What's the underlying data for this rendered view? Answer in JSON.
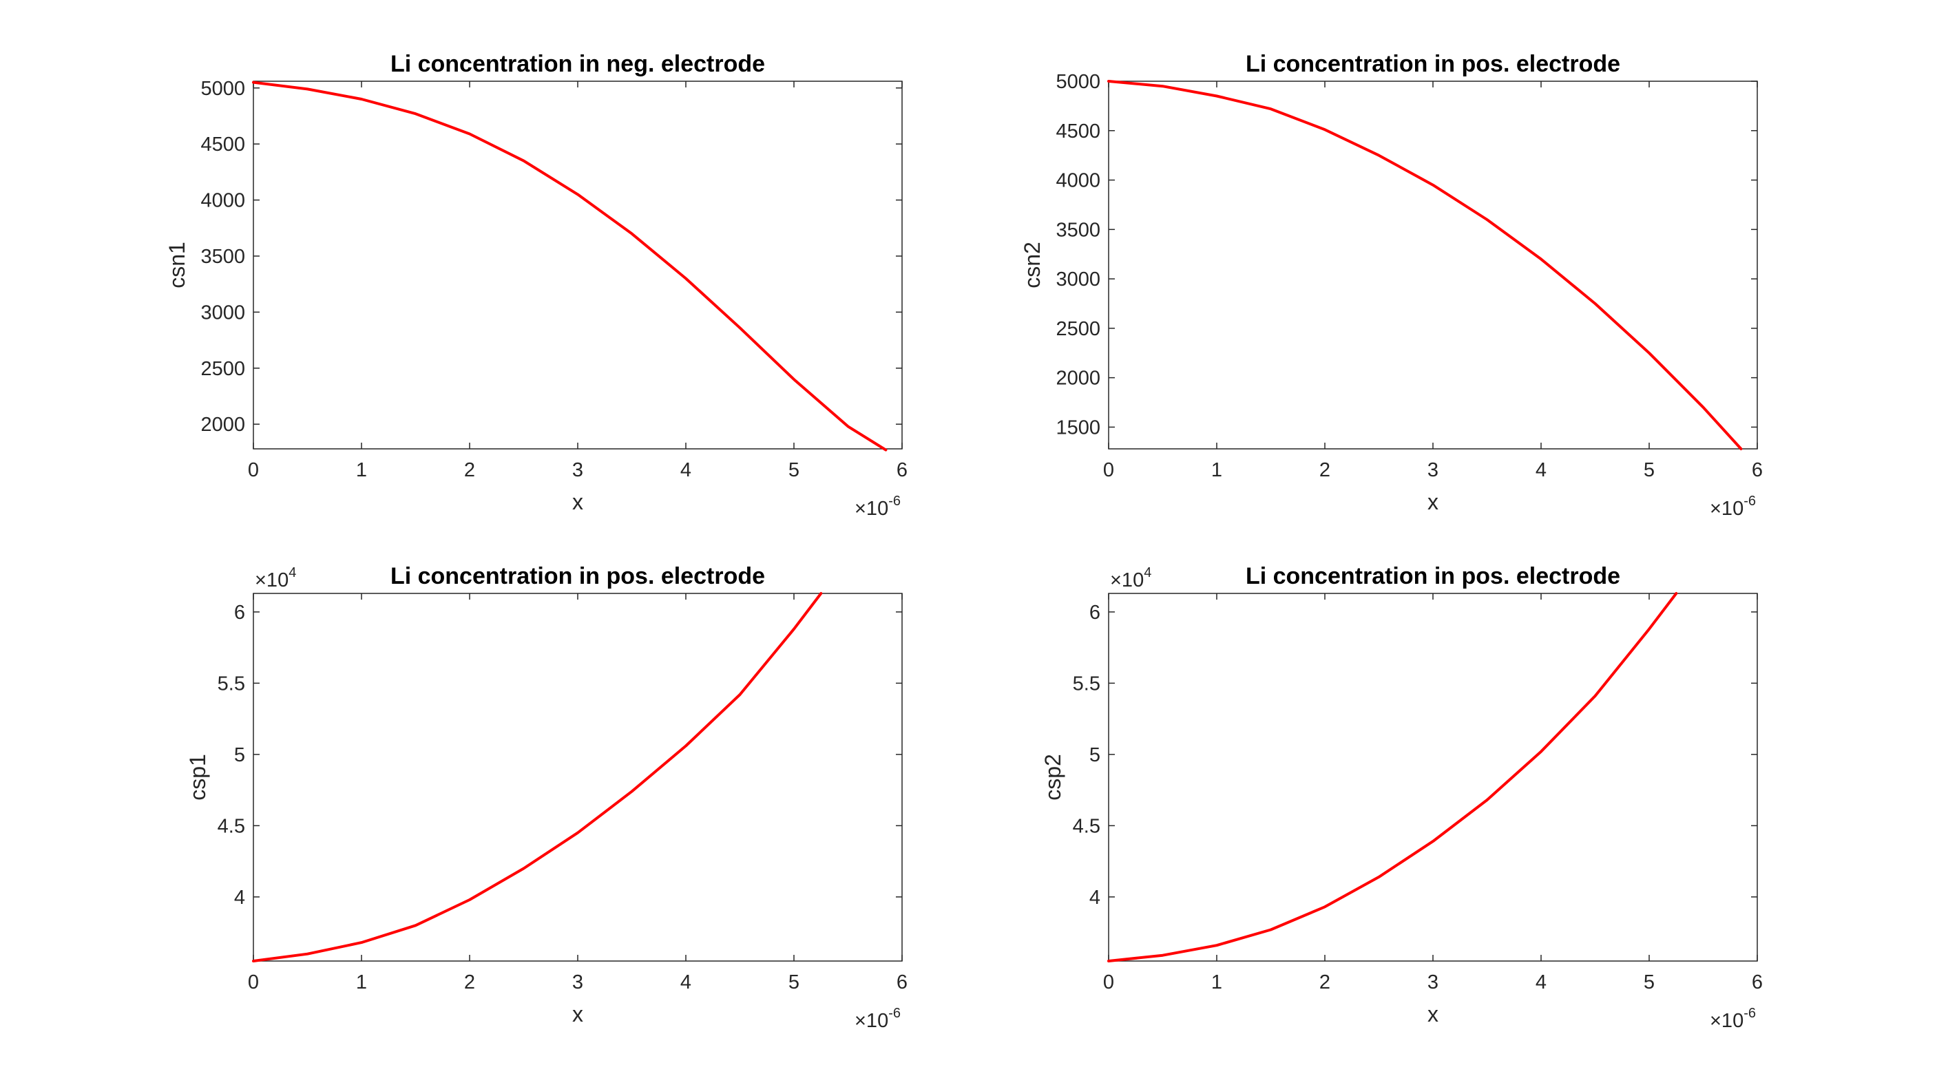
{
  "chart_data": [
    {
      "type": "line",
      "title": "Li concentration in neg. electrode",
      "xlabel": "x",
      "ylabel": "csn1",
      "x_exponent_label": "×10",
      "x_exponent_power": "-6",
      "y_exponent_label": "",
      "y_exponent_power": "",
      "xlim": [
        0,
        6
      ],
      "ylim": [
        1780,
        5060
      ],
      "xticks": [
        0,
        1,
        2,
        3,
        4,
        5,
        6
      ],
      "xtick_labels": [
        "0",
        "1",
        "2",
        "3",
        "4",
        "5",
        "6"
      ],
      "yticks": [
        2000,
        2500,
        3000,
        3500,
        4000,
        4500,
        5000
      ],
      "ytick_labels": [
        "2000",
        "2500",
        "3000",
        "3500",
        "4000",
        "4500",
        "5000"
      ],
      "color": "#ff0000",
      "x": [
        0,
        0.5,
        1,
        1.5,
        2,
        2.5,
        3,
        3.5,
        4,
        4.5,
        5,
        5.5,
        5.85
      ],
      "y": [
        5050,
        4990,
        4900,
        4770,
        4590,
        4350,
        4050,
        3700,
        3300,
        2860,
        2400,
        1980,
        1770
      ]
    },
    {
      "type": "line",
      "title": "Li concentration in pos. electrode",
      "xlabel": "x",
      "ylabel": "csn2",
      "x_exponent_label": "×10",
      "x_exponent_power": "-6",
      "y_exponent_label": "",
      "y_exponent_power": "",
      "xlim": [
        0,
        6
      ],
      "ylim": [
        1280,
        5000
      ],
      "xticks": [
        0,
        1,
        2,
        3,
        4,
        5,
        6
      ],
      "xtick_labels": [
        "0",
        "1",
        "2",
        "3",
        "4",
        "5",
        "6"
      ],
      "yticks": [
        1500,
        2000,
        2500,
        3000,
        3500,
        4000,
        4500,
        5000
      ],
      "ytick_labels": [
        "1500",
        "2000",
        "2500",
        "3000",
        "3500",
        "4000",
        "4500",
        "5000"
      ],
      "color": "#ff0000",
      "x": [
        0,
        0.5,
        1,
        1.5,
        2,
        2.5,
        3,
        3.5,
        4,
        4.5,
        5,
        5.5,
        5.85
      ],
      "y": [
        5000,
        4950,
        4850,
        4720,
        4510,
        4250,
        3950,
        3600,
        3200,
        2750,
        2250,
        1700,
        1280
      ]
    },
    {
      "type": "line",
      "title": "Li concentration in pos. electrode",
      "xlabel": "x",
      "ylabel": "csp1",
      "x_exponent_label": "×10",
      "x_exponent_power": "-6",
      "y_exponent_label": "×10",
      "y_exponent_power": "4",
      "xlim": [
        0,
        6
      ],
      "ylim": [
        3.55,
        6.13
      ],
      "xticks": [
        0,
        1,
        2,
        3,
        4,
        5,
        6
      ],
      "xtick_labels": [
        "0",
        "1",
        "2",
        "3",
        "4",
        "5",
        "6"
      ],
      "yticks": [
        4,
        4.5,
        5,
        5.5,
        6
      ],
      "ytick_labels": [
        "4",
        "4.5",
        "5",
        "5.5",
        "6"
      ],
      "color": "#ff0000",
      "x": [
        0,
        0.5,
        1,
        1.5,
        2,
        2.5,
        3,
        3.5,
        4,
        4.5,
        5,
        5.25
      ],
      "y": [
        3.55,
        3.6,
        3.68,
        3.8,
        3.98,
        4.2,
        4.45,
        4.74,
        5.06,
        5.42,
        5.88,
        6.13
      ]
    },
    {
      "type": "line",
      "title": "Li concentration in pos. electrode",
      "xlabel": "x",
      "ylabel": "csp2",
      "x_exponent_label": "×10",
      "x_exponent_power": "-6",
      "y_exponent_label": "×10",
      "y_exponent_power": "4",
      "xlim": [
        0,
        6
      ],
      "ylim": [
        3.55,
        6.13
      ],
      "xticks": [
        0,
        1,
        2,
        3,
        4,
        5,
        6
      ],
      "xtick_labels": [
        "0",
        "1",
        "2",
        "3",
        "4",
        "5",
        "6"
      ],
      "yticks": [
        4,
        4.5,
        5,
        5.5,
        6
      ],
      "ytick_labels": [
        "4",
        "4.5",
        "5",
        "5.5",
        "6"
      ],
      "color": "#ff0000",
      "x": [
        0,
        0.5,
        1,
        1.5,
        2,
        2.5,
        3,
        3.5,
        4,
        4.5,
        5,
        5.25
      ],
      "y": [
        3.55,
        3.59,
        3.66,
        3.77,
        3.93,
        4.14,
        4.39,
        4.68,
        5.02,
        5.41,
        5.88,
        6.13
      ]
    }
  ]
}
